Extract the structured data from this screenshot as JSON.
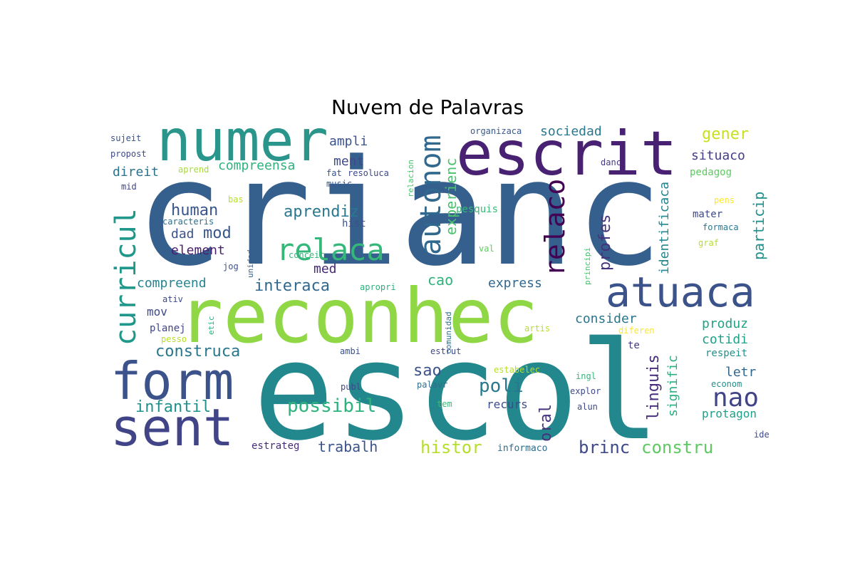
{
  "chart_data": {
    "type": "wordcloud",
    "title": "Nuvem de Palavras",
    "words": [
      {
        "text": "crianc",
        "color": "#355f8d",
        "weight": 100
      },
      {
        "text": "escol",
        "color": "#23888e",
        "weight": 98
      },
      {
        "text": "reconhec",
        "color": "#8fd744",
        "weight": 72
      },
      {
        "text": "escrit",
        "color": "#482173",
        "weight": 60
      },
      {
        "text": "numer",
        "color": "#2a968b",
        "weight": 55
      },
      {
        "text": "form",
        "color": "#3b528b",
        "weight": 48
      },
      {
        "text": "sent",
        "color": "#414487",
        "weight": 48
      },
      {
        "text": "atuaca",
        "color": "#3b528b",
        "weight": 35
      },
      {
        "text": "relaca",
        "color": "#35b779",
        "weight": 33
      },
      {
        "text": "curricul",
        "color": "#1f988b",
        "weight": 30
      },
      {
        "text": "autonom",
        "color": "#31688e",
        "weight": 30
      },
      {
        "text": "relaco",
        "color": "#440154",
        "weight": 29
      },
      {
        "text": "nao",
        "color": "#414487",
        "weight": 26
      },
      {
        "text": "possibil",
        "color": "#2db27d",
        "weight": 22
      },
      {
        "text": "construca",
        "color": "#2a788e",
        "weight": 18
      },
      {
        "text": "aprendiz",
        "color": "#2a788e",
        "weight": 18
      },
      {
        "text": "poli",
        "color": "#2a788e",
        "weight": 20
      },
      {
        "text": "brinc",
        "color": "#3e4989",
        "weight": 20
      },
      {
        "text": "constru",
        "color": "#5ec962",
        "weight": 20
      },
      {
        "text": "histor",
        "color": "#b5de2b",
        "weight": 20
      },
      {
        "text": "infantil",
        "color": "#21918c",
        "weight": 18
      },
      {
        "text": "profes",
        "color": "#46337e",
        "weight": 18
      },
      {
        "text": "oral",
        "color": "#46337e",
        "weight": 18
      },
      {
        "text": "sao",
        "color": "#3b528b",
        "weight": 18
      },
      {
        "text": "gener",
        "color": "#c8e020",
        "weight": 17
      },
      {
        "text": "human",
        "color": "#39568c",
        "weight": 17
      },
      {
        "text": "mod",
        "color": "#39568c",
        "weight": 17
      },
      {
        "text": "interaca",
        "color": "#31688e",
        "weight": 17
      },
      {
        "text": "linguis",
        "color": "#472d7b",
        "weight": 17
      },
      {
        "text": "experienc",
        "color": "#4ac16d",
        "weight": 16
      },
      {
        "text": "particip",
        "color": "#21918c",
        "weight": 16
      },
      {
        "text": "identificaca",
        "color": "#24868e",
        "weight": 14
      },
      {
        "text": "signific",
        "color": "#29af7f",
        "weight": 14
      },
      {
        "text": "ampli",
        "color": "#3b528b",
        "weight": 15
      },
      {
        "text": "ment",
        "color": "#3e4989",
        "weight": 15
      },
      {
        "text": "compreensa",
        "color": "#2db27d",
        "weight": 14
      },
      {
        "text": "sociedad",
        "color": "#2a788e",
        "weight": 14
      },
      {
        "text": "situaco",
        "color": "#433e85",
        "weight": 14
      },
      {
        "text": "direit",
        "color": "#2c728e",
        "weight": 14
      },
      {
        "text": "dad",
        "color": "#3b528b",
        "weight": 14
      },
      {
        "text": "element",
        "color": "#481f70",
        "weight": 14
      },
      {
        "text": "med",
        "color": "#472878",
        "weight": 14
      },
      {
        "text": "compreend",
        "color": "#25848e",
        "weight": 14
      },
      {
        "text": "cao",
        "color": "#2fb47c",
        "weight": 14
      },
      {
        "text": "express",
        "color": "#31688e",
        "weight": 14
      },
      {
        "text": "consider",
        "color": "#2a768e",
        "weight": 14
      },
      {
        "text": "produz",
        "color": "#20a386",
        "weight": 14
      },
      {
        "text": "cotidi",
        "color": "#1fa088",
        "weight": 14
      },
      {
        "text": "letr",
        "color": "#31688e",
        "weight": 13
      },
      {
        "text": "protagon",
        "color": "#1fa088",
        "weight": 12
      },
      {
        "text": "mov",
        "color": "#3e4989",
        "weight": 12
      },
      {
        "text": "planej",
        "color": "#404688",
        "weight": 11
      },
      {
        "text": "trabalh",
        "color": "#3b528b",
        "weight": 15
      },
      {
        "text": "recurs",
        "color": "#3e4c8a",
        "weight": 12
      },
      {
        "text": "mater",
        "color": "#3e4989",
        "weight": 11
      },
      {
        "text": "respeit",
        "color": "#21918c",
        "weight": 11
      },
      {
        "text": "te",
        "color": "#453781",
        "weight": 11
      },
      {
        "text": "pedagog",
        "color": "#5ec962",
        "weight": 11
      },
      {
        "text": "pesquis",
        "color": "#3aba76",
        "weight": 11
      },
      {
        "text": "hist",
        "color": "#3b528b",
        "weight": 11
      },
      {
        "text": "estrateg",
        "color": "#472c7a",
        "weight": 11
      },
      {
        "text": "informaco",
        "color": "#2e6e8e",
        "weight": 10
      },
      {
        "text": "sujeit",
        "color": "#3b528b",
        "weight": 9
      },
      {
        "text": "propost",
        "color": "#3e4989",
        "weight": 9
      },
      {
        "text": "mid",
        "color": "#414487",
        "weight": 9
      },
      {
        "text": "aprend",
        "color": "#a8db34",
        "weight": 9
      },
      {
        "text": "fat",
        "color": "#3b528b",
        "weight": 9
      },
      {
        "text": "resoluca",
        "color": "#3e4989",
        "weight": 9
      },
      {
        "text": "music",
        "color": "#38598c",
        "weight": 9
      },
      {
        "text": "organizaca",
        "color": "#38588c",
        "weight": 9
      },
      {
        "text": "relacion",
        "color": "#4ac16d",
        "weight": 8
      },
      {
        "text": "danc",
        "color": "#443983",
        "weight": 9
      },
      {
        "text": "bas",
        "color": "#b8de29",
        "weight": 9
      },
      {
        "text": "caracteris",
        "color": "#2e6f8e",
        "weight": 9
      },
      {
        "text": "conceit",
        "color": "#35b779",
        "weight": 9
      },
      {
        "text": "jog",
        "color": "#3b528b",
        "weight": 9
      },
      {
        "text": "unidad",
        "color": "#355f8d",
        "weight": 8
      },
      {
        "text": "val",
        "color": "#5ec962",
        "weight": 9
      },
      {
        "text": "principi",
        "color": "#4ac16d",
        "weight": 8
      },
      {
        "text": "apropri",
        "color": "#2db27d",
        "weight": 9
      },
      {
        "text": "ativ",
        "color": "#3e4989",
        "weight": 9
      },
      {
        "text": "etic",
        "color": "#2db27d",
        "weight": 8
      },
      {
        "text": "pesso",
        "color": "#b8de29",
        "weight": 9
      },
      {
        "text": "ambi",
        "color": "#3b528b",
        "weight": 9
      },
      {
        "text": "comunidad",
        "color": "#2e6f8e",
        "weight": 8
      },
      {
        "text": "artis",
        "color": "#b5de2b",
        "weight": 9
      },
      {
        "text": "diferen",
        "color": "#fde725",
        "weight": 9
      },
      {
        "text": "estrut",
        "color": "#3e4989",
        "weight": 9
      },
      {
        "text": "estabelec",
        "color": "#b5de2b",
        "weight": 9
      },
      {
        "text": "palavr",
        "color": "#2e6e8e",
        "weight": 9
      },
      {
        "text": "publ",
        "color": "#3e4989",
        "weight": 9
      },
      {
        "text": "ingl",
        "color": "#35b779",
        "weight": 9
      },
      {
        "text": "explor",
        "color": "#3e4989",
        "weight": 9
      },
      {
        "text": "alun",
        "color": "#3e4989",
        "weight": 9
      },
      {
        "text": "tem",
        "color": "#3aba76",
        "weight": 9
      },
      {
        "text": "econom",
        "color": "#21918c",
        "weight": 9
      },
      {
        "text": "ide",
        "color": "#3e4989",
        "weight": 9
      },
      {
        "text": "pens",
        "color": "#fde725",
        "weight": 9
      },
      {
        "text": "formaca",
        "color": "#2a788e",
        "weight": 9
      },
      {
        "text": "graf",
        "color": "#b5de2b",
        "weight": 9
      }
    ]
  }
}
